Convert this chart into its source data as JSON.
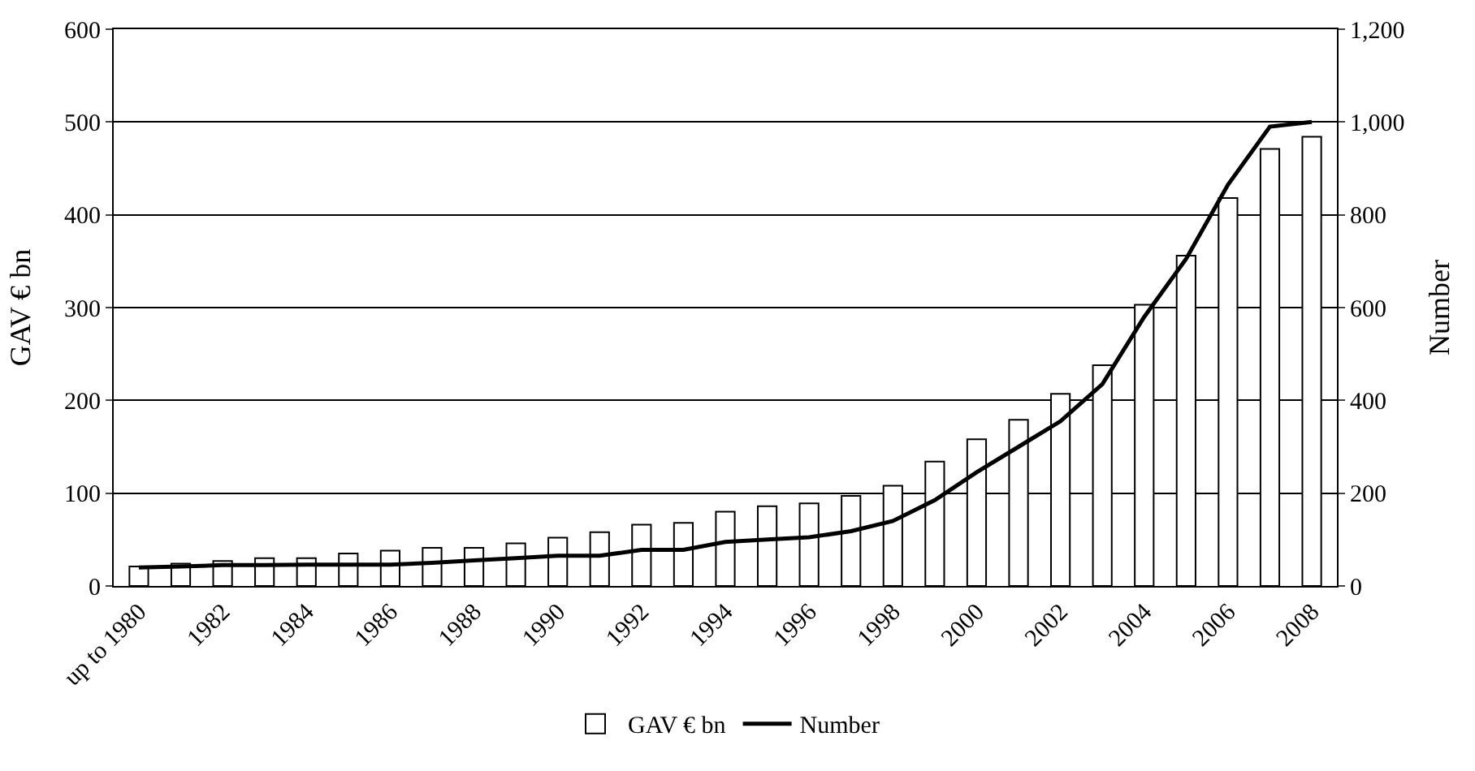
{
  "chart_data": {
    "type": "bar",
    "ylabel": "GAV € bn",
    "y2label": "Number",
    "categories": [
      "up to 1980",
      null,
      "1982",
      null,
      "1984",
      null,
      "1986",
      null,
      "1988",
      null,
      "1990",
      null,
      "1992",
      null,
      "1994",
      null,
      "1996",
      null,
      "1998",
      null,
      "2000",
      null,
      "2002",
      null,
      "2004",
      null,
      "2006",
      null,
      "2008"
    ],
    "series": [
      {
        "name": "GAV € bn",
        "color": "#ffffff",
        "values": [
          21,
          24,
          27,
          30,
          30,
          35,
          38,
          41,
          41,
          46,
          52,
          58,
          66,
          68,
          80,
          86,
          89,
          97,
          108,
          134,
          158,
          179,
          207,
          238,
          303,
          356,
          418,
          471,
          484
        ]
      },
      {
        "name": "Number",
        "type": "line",
        "axis": "y2",
        "color": "#000000",
        "values": [
          40,
          42,
          45,
          45,
          46,
          46,
          46,
          50,
          55,
          60,
          65,
          65,
          78,
          78,
          95,
          100,
          105,
          118,
          140,
          185,
          245,
          300,
          355,
          435,
          580,
          705,
          865,
          990,
          1000
        ]
      }
    ],
    "ylim": [
      0,
      600
    ],
    "yticks": [
      0,
      100,
      200,
      300,
      400,
      500,
      600
    ],
    "y2lim": [
      0,
      1200
    ],
    "y2ticks": [
      0,
      200,
      400,
      600,
      800,
      {
        "value": 1000,
        "label": "1,000"
      },
      {
        "value": 1200,
        "label": "1,200"
      }
    ],
    "grid": "y",
    "legend": "bottom",
    "marker": "none",
    "line_style": "solid"
  }
}
